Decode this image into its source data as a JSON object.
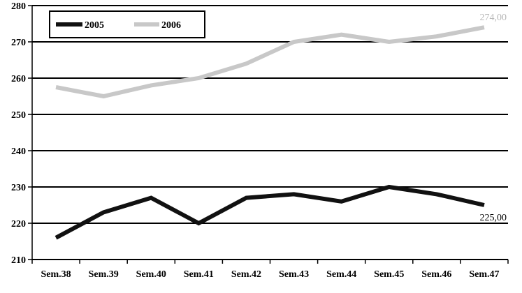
{
  "chart_data": {
    "type": "line",
    "title": "",
    "xlabel": "",
    "ylabel": "",
    "categories": [
      "Sem.38",
      "Sem.39",
      "Sem.40",
      "Sem.41",
      "Sem.42",
      "Sem.43",
      "Sem.44",
      "Sem.45",
      "Sem.46",
      "Sem.47"
    ],
    "ylim": [
      210,
      280
    ],
    "yticks": [
      210,
      220,
      230,
      240,
      250,
      260,
      270,
      280
    ],
    "grid": true,
    "legend_position": "top-left",
    "series": [
      {
        "name": "2005",
        "color": "#111111",
        "values": [
          216,
          223,
          227,
          220,
          227,
          228,
          226,
          230,
          228,
          225
        ],
        "end_label": "225,00"
      },
      {
        "name": "2006",
        "color": "#c8c8c8",
        "values": [
          257.5,
          255,
          258,
          260,
          264,
          270,
          272,
          270,
          271.5,
          274
        ],
        "end_label": "274,00"
      }
    ]
  }
}
